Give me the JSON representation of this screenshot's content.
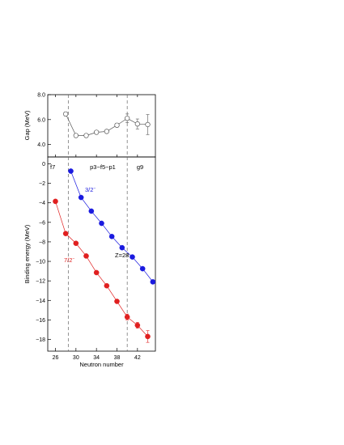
{
  "chart_data": [
    {
      "type": "line",
      "panel": "top",
      "ylabel": "Gap (MeV)",
      "ylim": [
        3.0,
        8.0
      ],
      "yticks": [
        4.0,
        6.0,
        8.0
      ],
      "xlim": [
        24.5,
        45.5
      ],
      "series": [
        {
          "color": "#555555",
          "marker": "open-circle",
          "x": [
            28,
            30,
            32,
            34,
            36,
            38,
            40,
            42,
            44
          ],
          "y": [
            6.45,
            4.72,
            4.72,
            4.98,
            5.05,
            5.55,
            6.1,
            5.65,
            5.6
          ],
          "yerr": [
            0.15,
            0.1,
            0.1,
            0.1,
            0.1,
            0.15,
            0.35,
            0.4,
            0.8
          ]
        }
      ],
      "vlines": [
        28.5,
        40
      ]
    },
    {
      "type": "line",
      "panel": "bottom",
      "xlabel": "Neutron number",
      "ylabel": "Binding energy (MeV)",
      "xlim": [
        24.5,
        45.5
      ],
      "ylim": [
        -19.2,
        0.7
      ],
      "xticks": [
        26,
        30,
        34,
        38,
        42
      ],
      "yticks": [
        0,
        -2,
        -4,
        -6,
        -8,
        -10,
        -12,
        -14,
        -16,
        -18
      ],
      "series": [
        {
          "color": "#1a1adf",
          "x": [
            29,
            31,
            33,
            35,
            37,
            39,
            41,
            43,
            45
          ],
          "y": [
            -0.75,
            -3.45,
            -4.85,
            -6.1,
            -7.45,
            -8.6,
            -9.55,
            -10.75,
            -12.1
          ]
        },
        {
          "color": "#e01f1f",
          "x": [
            26,
            28,
            30,
            32,
            34,
            36,
            38,
            40,
            42,
            44
          ],
          "y": [
            -3.85,
            -7.15,
            -8.15,
            -9.45,
            -11.15,
            -12.5,
            -14.1,
            -15.7,
            -16.55,
            -17.7
          ],
          "yerr": [
            0,
            0,
            0,
            0,
            0,
            0,
            0,
            0.3,
            0.3,
            0.6
          ]
        }
      ],
      "vlines": [
        28.5,
        40
      ],
      "annotations": {
        "blue_label": "3/2",
        "blue_label_sup": "−",
        "red_label": "7/2",
        "red_label_sup": "−",
        "z_label": "Z=28",
        "region_f7": "f7",
        "region_pfp": "p3−f5−p1",
        "region_g9": "g9"
      }
    }
  ]
}
